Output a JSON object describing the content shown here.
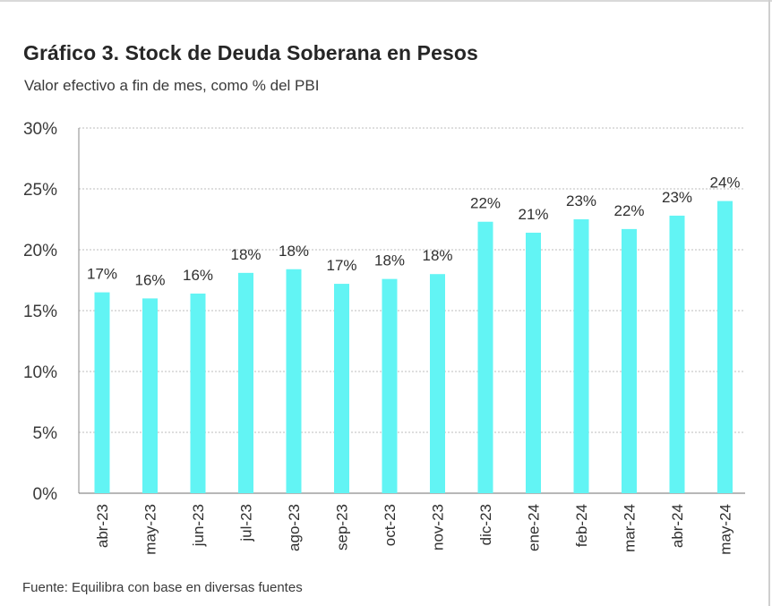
{
  "title": "Gráfico 3. Stock de Deuda Soberana en Pesos",
  "subtitle": "Valor efectivo a fin de mes, como % del PBI",
  "source": "Fuente: Equilibra con base en diversas fuentes",
  "colors": {
    "bar": "#62f4f4",
    "grid": "#bdbdbd",
    "axis": "#8a8a8a"
  },
  "chart_data": {
    "type": "bar",
    "categories": [
      "abr-23",
      "may-23",
      "jun-23",
      "jul-23",
      "ago-23",
      "sep-23",
      "oct-23",
      "nov-23",
      "dic-23",
      "ene-24",
      "feb-24",
      "mar-24",
      "abr-24",
      "may-24"
    ],
    "values": [
      16.5,
      16.0,
      16.4,
      18.1,
      18.4,
      17.2,
      17.6,
      18.0,
      22.3,
      21.4,
      22.5,
      21.7,
      22.8,
      24.0
    ],
    "data_labels": [
      "17%",
      "16%",
      "16%",
      "18%",
      "18%",
      "17%",
      "18%",
      "18%",
      "22%",
      "21%",
      "23%",
      "22%",
      "23%",
      "24%"
    ],
    "ylim": [
      0,
      30
    ],
    "y_ticks": [
      0,
      5,
      10,
      15,
      20,
      25,
      30
    ],
    "y_tick_labels": [
      "0%",
      "5%",
      "10%",
      "15%",
      "20%",
      "25%",
      "30%"
    ],
    "grid": true,
    "legend": "none"
  }
}
